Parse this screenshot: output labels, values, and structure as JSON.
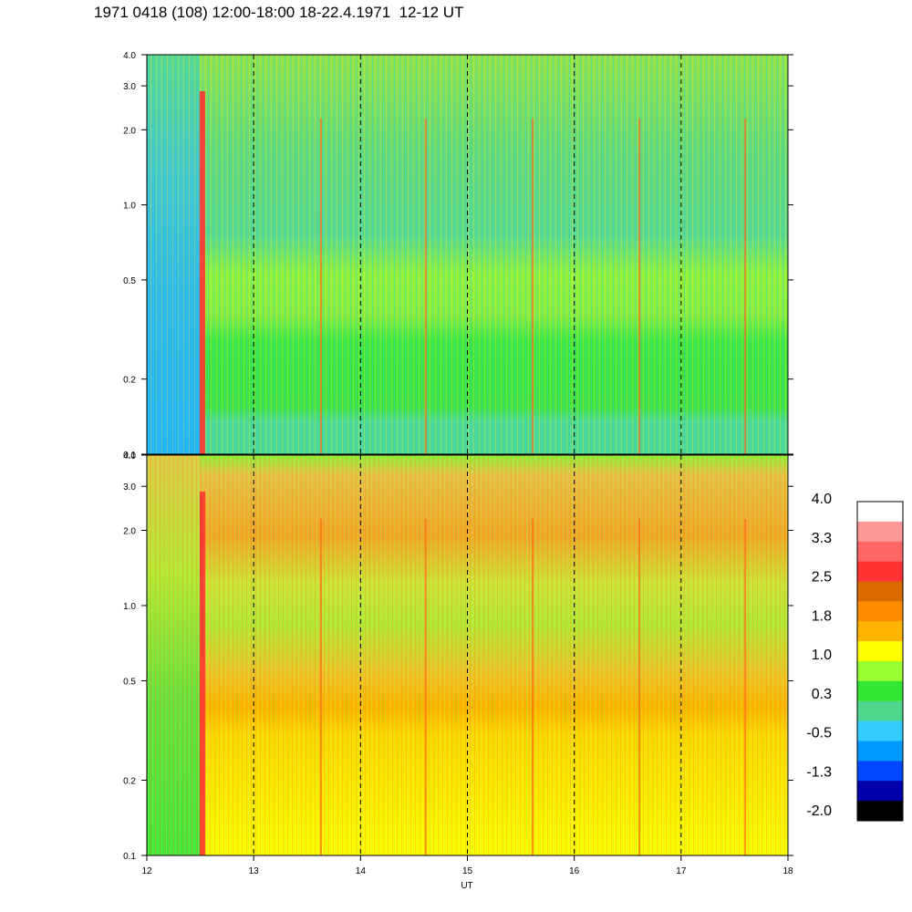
{
  "title": "1971 0418 (108) 12:00-18:00 18-22.4.1971  12-12 UT",
  "chart_data": [
    {
      "type": "heatmap",
      "panel": "top",
      "x_range": [
        12,
        18
      ],
      "y_scale": "log",
      "y_range": [
        0.1,
        4.0
      ],
      "y_ticks": [
        "0.1",
        "0.2",
        "0.5",
        "1.0",
        "2.0",
        "3.0",
        "4.0"
      ],
      "dashed_hour_lines": [
        13,
        14,
        15,
        16,
        17
      ],
      "spike_times": [
        12.52,
        13.63,
        14.61,
        15.61,
        16.61,
        17.6
      ]
    },
    {
      "type": "heatmap",
      "panel": "bottom",
      "x_range": [
        12,
        18
      ],
      "y_scale": "log",
      "y_range": [
        0.1,
        4.0
      ],
      "y_ticks": [
        "0.1",
        "0.2",
        "0.5",
        "1.0",
        "2.0",
        "3.0",
        "4.0"
      ],
      "dashed_hour_lines": [
        13,
        14,
        15,
        16,
        17
      ],
      "spike_times": [
        12.52,
        13.63,
        14.61,
        15.61,
        16.61,
        17.6
      ]
    }
  ],
  "x_axis": {
    "label": "UT",
    "ticks": [
      "12",
      "13",
      "14",
      "15",
      "16",
      "17",
      "18"
    ]
  },
  "colorbar": {
    "labels": [
      "4.0",
      "3.3",
      "2.5",
      "1.8",
      "1.0",
      "0.3",
      "-0.5",
      "-1.3",
      "-2.0"
    ],
    "colors_top_to_bottom": [
      "#ffffff",
      "#ff9999",
      "#ff6666",
      "#ff3333",
      "#d96a00",
      "#ff8c00",
      "#ffb400",
      "#ffff00",
      "#99ff33",
      "#33e633",
      "#4dd68c",
      "#33ccff",
      "#0099ff",
      "#0047ff",
      "#0000aa",
      "#000000"
    ]
  }
}
